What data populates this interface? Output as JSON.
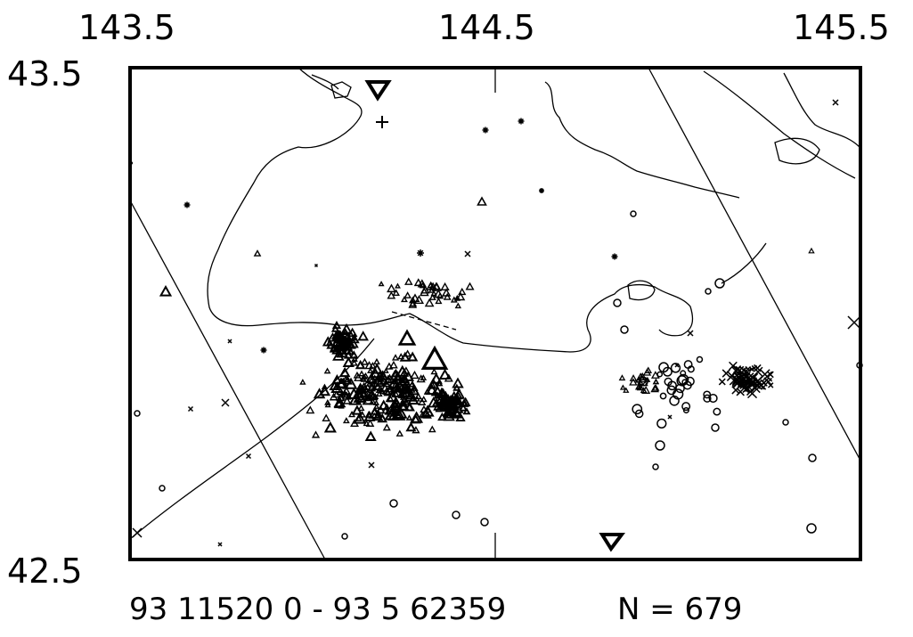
{
  "map": {
    "lon_labels": [
      "143.5",
      "144.5",
      "145.5"
    ],
    "lat_labels": [
      "43.5",
      "42.5"
    ],
    "extent": {
      "lon": [
        143.5,
        145.5
      ],
      "lat": [
        42.5,
        43.5
      ]
    },
    "footer": {
      "time_range": "93 11520 0 - 93 5 62359",
      "count": "N =  679"
    },
    "symbol_types": [
      "triangle",
      "circle",
      "cross",
      "asterisk",
      "plus",
      "inverted-triangle"
    ],
    "colors": {
      "ink": "#000000",
      "background": "#ffffff"
    }
  }
}
